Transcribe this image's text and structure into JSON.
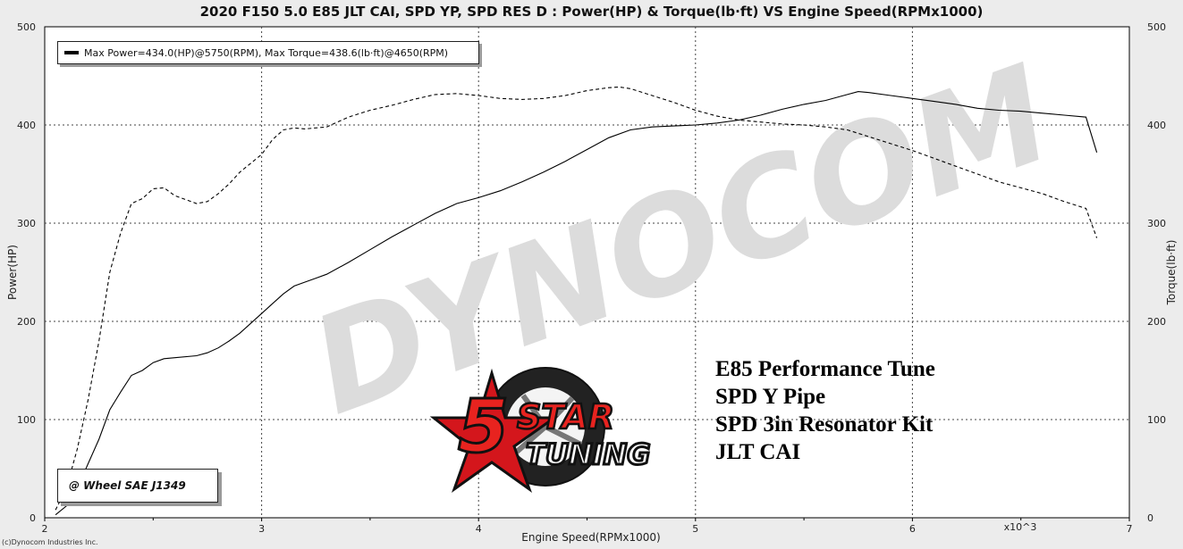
{
  "chart_data": {
    "type": "line",
    "title": "2020 F150 5.0 E85 JLT CAI, SPD YP, SPD RES D : Power(HP) & Torque(lb·ft) VS Engine Speed(RPMx1000)",
    "xlabel": "Engine Speed(RPMx1000)",
    "ylabel": "Power(HP)",
    "y2label": "Torque(lb·ft)",
    "x_unit_note": "x10^3",
    "xlim": [
      2,
      7
    ],
    "ylim": [
      0,
      500
    ],
    "y2lim": [
      0,
      500
    ],
    "x_ticks": [
      "2",
      "3",
      "4",
      "5",
      "6",
      "7"
    ],
    "y_ticks": [
      "0",
      "100",
      "200",
      "300",
      "400",
      "500"
    ],
    "y2_ticks": [
      "0",
      "100",
      "200",
      "300",
      "400",
      "500"
    ],
    "grid": true,
    "legend_text": "Max Power=434.0(HP)@5750(RPM), Max Torque=438.6(lb·ft)@4650(RPM)",
    "correction_label": "@ Wheel SAE J1349",
    "series": [
      {
        "name": "Power(HP)",
        "style": "solid",
        "axis": "left",
        "x": [
          2.05,
          2.1,
          2.15,
          2.2,
          2.25,
          2.3,
          2.35,
          2.4,
          2.45,
          2.5,
          2.55,
          2.6,
          2.7,
          2.75,
          2.8,
          2.85,
          2.9,
          3.0,
          3.05,
          3.1,
          3.15,
          3.2,
          3.25,
          3.3,
          3.4,
          3.5,
          3.6,
          3.7,
          3.8,
          3.9,
          4.0,
          4.1,
          4.2,
          4.3,
          4.4,
          4.5,
          4.6,
          4.7,
          4.8,
          4.9,
          5.0,
          5.1,
          5.2,
          5.3,
          5.4,
          5.5,
          5.6,
          5.7,
          5.75,
          5.8,
          5.9,
          6.0,
          6.1,
          6.2,
          6.3,
          6.4,
          6.5,
          6.6,
          6.7,
          6.8,
          6.85
        ],
        "y": [
          3,
          12,
          30,
          55,
          80,
          110,
          128,
          145,
          150,
          158,
          162,
          163,
          165,
          168,
          173,
          180,
          188,
          208,
          218,
          228,
          236,
          240,
          244,
          248,
          260,
          273,
          286,
          298,
          310,
          320,
          326,
          333,
          342,
          352,
          363,
          375,
          387,
          395,
          398,
          399,
          400,
          402,
          405,
          410,
          416,
          421,
          425,
          431,
          434,
          433,
          430,
          427,
          424,
          421,
          417,
          415,
          414,
          412,
          410,
          408,
          372
        ]
      },
      {
        "name": "Torque(lb·ft)",
        "style": "dashed",
        "axis": "right",
        "x": [
          2.05,
          2.1,
          2.15,
          2.2,
          2.25,
          2.3,
          2.35,
          2.4,
          2.45,
          2.5,
          2.55,
          2.6,
          2.7,
          2.75,
          2.8,
          2.85,
          2.9,
          3.0,
          3.05,
          3.1,
          3.15,
          3.2,
          3.3,
          3.4,
          3.5,
          3.6,
          3.7,
          3.8,
          3.9,
          4.0,
          4.1,
          4.2,
          4.3,
          4.4,
          4.5,
          4.6,
          4.65,
          4.7,
          4.8,
          4.9,
          5.0,
          5.1,
          5.2,
          5.3,
          5.4,
          5.5,
          5.6,
          5.7,
          5.8,
          5.9,
          6.0,
          6.1,
          6.2,
          6.3,
          6.4,
          6.5,
          6.6,
          6.7,
          6.8,
          6.85
        ],
        "y": [
          8,
          30,
          70,
          120,
          180,
          250,
          290,
          320,
          325,
          335,
          336,
          328,
          320,
          322,
          330,
          340,
          352,
          370,
          385,
          395,
          397,
          396,
          398,
          408,
          415,
          420,
          426,
          431,
          432,
          430,
          427,
          426,
          427,
          430,
          435,
          438,
          438.6,
          437,
          430,
          423,
          415,
          409,
          405,
          403,
          401,
          400,
          398,
          395,
          388,
          381,
          374,
          366,
          358,
          350,
          342,
          336,
          330,
          322,
          315,
          285
        ]
      }
    ]
  },
  "annotation": {
    "lines": [
      "E85 Performance Tune",
      "SPD Y Pipe",
      "SPD 3in Resonator Kit",
      "JLT CAI"
    ]
  },
  "logo": {
    "text": "5 STAR TUNING",
    "colors": [
      "#d4161c",
      "#111111",
      "#ffffff"
    ]
  },
  "watermark": {
    "text": "DYNOCOM",
    "color": "#d8d8d8"
  },
  "copyright": "(c)Dynocom Industries Inc.",
  "colors": {
    "background": "#ececec",
    "plot_background": "#ffffff",
    "grid": "#555555",
    "line": "#000000"
  }
}
